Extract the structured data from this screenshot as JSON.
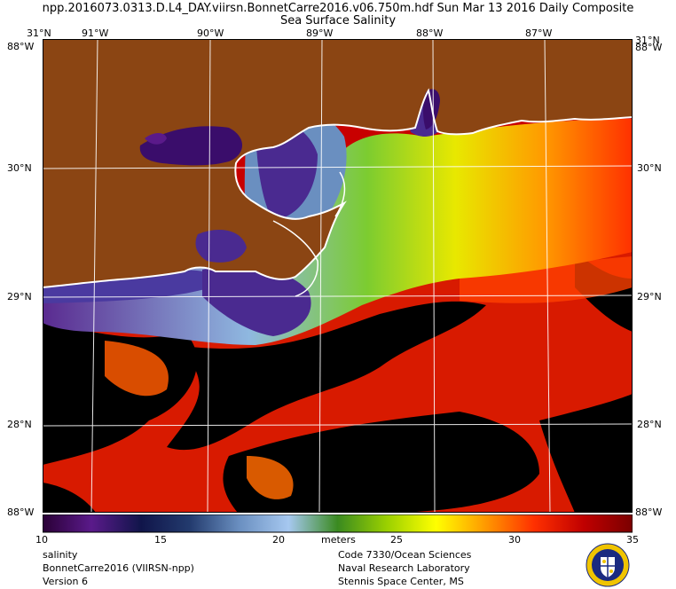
{
  "header": {
    "line1": "npp.2016073.0313.D.L4_DAY.viirsn.BonnetCarre2016.v06.750m.hdf     Sun Mar 13 2016 Daily Composite",
    "line2": "Sea Surface Salinity"
  },
  "map": {
    "lon_top": [
      "31°N",
      "91°W",
      "90°W",
      "89°W",
      "88°W",
      "87°W",
      "31°N"
    ],
    "lat_left": [
      "30°N",
      "29°N",
      "28°N"
    ],
    "lat_right": [
      "30°N",
      "29°N",
      "28°N"
    ],
    "corner_tl": "88°W",
    "corner_tr": "88°W",
    "corner_bl": "88°W",
    "corner_br": "88°W",
    "colors": {
      "land": "#8b4513",
      "coast": "#ffffff",
      "low_salinity": "#3a0d6b",
      "mid_salinity": "#8fb8e0",
      "high_salinity": "#d40000",
      "no_data": "#000000"
    }
  },
  "colorbar": {
    "ticks": [
      "10",
      "15",
      "20",
      "meters",
      "25",
      "30",
      "35"
    ],
    "stops": [
      "#2a0036",
      "#5a1a8a",
      "#10154a",
      "#233b6e",
      "#6a8fc0",
      "#a6c8f0",
      "#3a8a20",
      "#9ad000",
      "#ffff00",
      "#ff9a00",
      "#ff3000",
      "#c00000",
      "#7a0000"
    ]
  },
  "footer": {
    "left": [
      "salinity",
      "BonnetCarre2016 (VIIRSN-npp)",
      "Version 6"
    ],
    "right": [
      "Code 7330/Ocean Sciences",
      "Naval Research Laboratory",
      "Stennis Space Center, MS"
    ]
  }
}
